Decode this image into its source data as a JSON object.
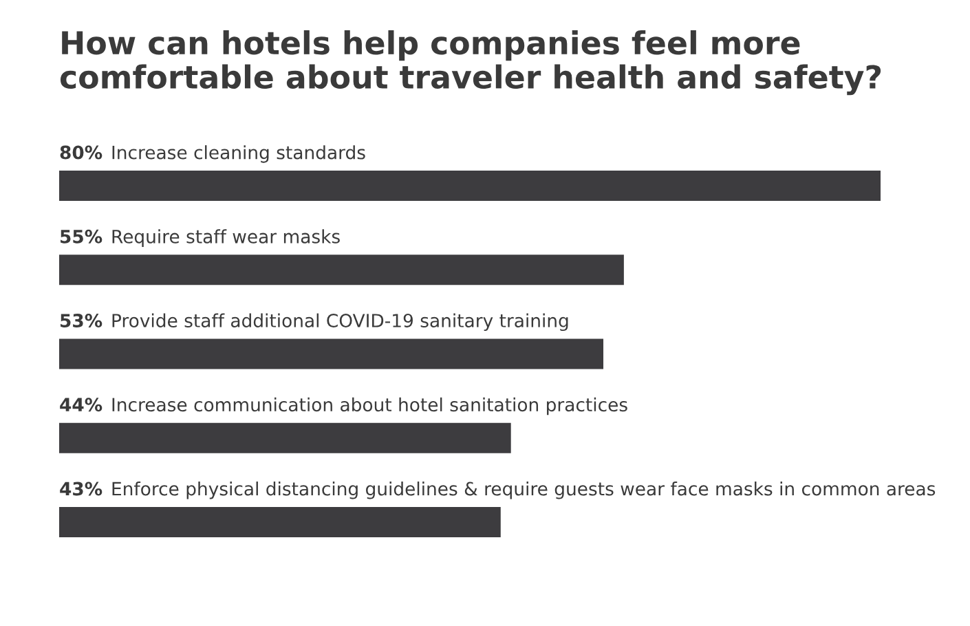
{
  "chart_data": {
    "type": "bar",
    "orientation": "horizontal",
    "title": "How can hotels help companies feel more\ncomfortable about traveler health and safety?",
    "categories": [
      "Increase cleaning standards",
      "Require staff wear masks",
      "Provide staff additional COVID-19 sanitary training",
      "Increase communication about hotel sanitation practices",
      "Enforce physical distancing guidelines & require guests wear face masks in common areas"
    ],
    "values": [
      80,
      55,
      53,
      44,
      43
    ],
    "value_labels": [
      "80%",
      "55%",
      "53%",
      "44%",
      "43%"
    ],
    "color": "#3d3c3f",
    "grid": false,
    "legend": false,
    "tick_labels": false
  }
}
